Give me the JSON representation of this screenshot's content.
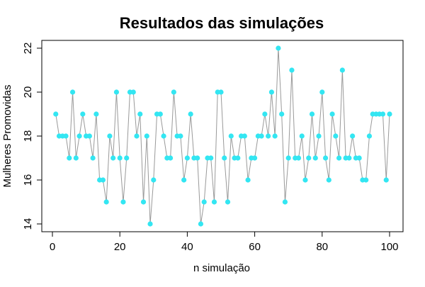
{
  "chart_data": {
    "type": "line",
    "title": "Resultados das simulações",
    "xlabel": "n simulação",
    "ylabel": "Mulheres Promovidas",
    "xlim": [
      0,
      100
    ],
    "ylim": [
      14,
      22
    ],
    "x_ticks": [
      0,
      20,
      40,
      60,
      80,
      100
    ],
    "y_ticks": [
      14,
      16,
      18,
      20,
      22
    ],
    "grid": false,
    "line_color": "#999999",
    "point_color": "#33e6f2",
    "x": [
      1,
      2,
      3,
      4,
      5,
      6,
      7,
      8,
      9,
      10,
      11,
      12,
      13,
      14,
      15,
      16,
      17,
      18,
      19,
      20,
      21,
      22,
      23,
      24,
      25,
      26,
      27,
      28,
      29,
      30,
      31,
      32,
      33,
      34,
      35,
      36,
      37,
      38,
      39,
      40,
      41,
      42,
      43,
      44,
      45,
      46,
      47,
      48,
      49,
      50,
      51,
      52,
      53,
      54,
      55,
      56,
      57,
      58,
      59,
      60,
      61,
      62,
      63,
      64,
      65,
      66,
      67,
      68,
      69,
      70,
      71,
      72,
      73,
      74,
      75,
      76,
      77,
      78,
      79,
      80,
      81,
      82,
      83,
      84,
      85,
      86,
      87,
      88,
      89,
      90,
      91,
      92,
      93,
      94,
      95,
      96,
      97,
      98,
      99,
      100
    ],
    "series": [
      {
        "values": [
          19,
          18,
          18,
          18,
          17,
          20,
          17,
          18,
          19,
          18,
          18,
          17,
          19,
          16,
          16,
          15,
          18,
          17,
          20,
          17,
          15,
          17,
          20,
          20,
          18,
          19,
          15,
          18,
          14,
          16,
          19,
          19,
          18,
          17,
          17,
          20,
          18,
          18,
          16,
          17,
          19,
          17,
          17,
          14,
          15,
          17,
          17,
          15,
          20,
          20,
          17,
          15,
          18,
          17,
          17,
          18,
          18,
          16,
          17,
          17,
          18,
          18,
          19,
          18,
          20,
          18,
          22,
          19,
          15,
          17,
          21,
          17,
          17,
          18,
          16,
          17,
          19,
          17,
          18,
          20,
          17,
          16,
          19,
          18,
          17,
          21,
          17,
          17,
          18,
          17,
          17,
          16,
          16,
          18,
          19,
          19,
          19,
          19,
          16,
          19
        ]
      }
    ]
  }
}
